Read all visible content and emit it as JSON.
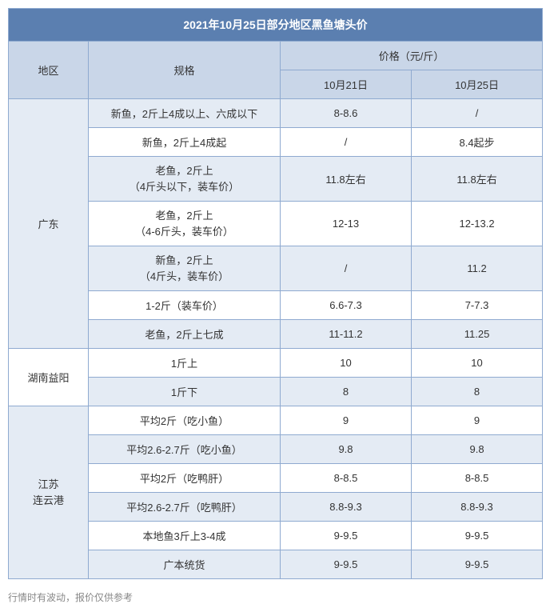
{
  "title": "2021年10月25日部分地区黑鱼塘头价",
  "columns": {
    "region": "地区",
    "spec": "规格",
    "price_group": "价格（元/斤）",
    "date1": "10月21日",
    "date2": "10月25日"
  },
  "regions": [
    {
      "name": "广东",
      "rows": [
        {
          "spec": "新鱼，2斤上4成以上、六成以下",
          "p1": "8-8.6",
          "p2": "/",
          "alt": true
        },
        {
          "spec": "新鱼，2斤上4成起",
          "p1": "/",
          "p2": "8.4起步",
          "alt": false
        },
        {
          "spec_l1": "老鱼，2斤上",
          "spec_l2": "（4斤头以下，装车价）",
          "p1": "11.8左右",
          "p2": "11.8左右",
          "alt": true
        },
        {
          "spec_l1": "老鱼，2斤上",
          "spec_l2": "（4-6斤头，装车价）",
          "p1": "12-13",
          "p2": "12-13.2",
          "alt": false
        },
        {
          "spec_l1": "新鱼，2斤上",
          "spec_l2": "（4斤头，装车价）",
          "p1": "/",
          "p2": "11.2",
          "alt": true
        },
        {
          "spec": "1-2斤（装车价）",
          "p1": "6.6-7.3",
          "p2": "7-7.3",
          "alt": false
        },
        {
          "spec": "老鱼，2斤上七成",
          "p1": "11-11.2",
          "p2": "11.25",
          "alt": true
        }
      ]
    },
    {
      "name": "湖南益阳",
      "rows": [
        {
          "spec": "1斤上",
          "p1": "10",
          "p2": "10",
          "alt": false
        },
        {
          "spec": "1斤下",
          "p1": "8",
          "p2": "8",
          "alt": true
        }
      ]
    },
    {
      "name_l1": "江苏",
      "name_l2": "连云港",
      "rows": [
        {
          "spec": "平均2斤（吃小鱼）",
          "p1": "9",
          "p2": "9",
          "alt": false
        },
        {
          "spec": "平均2.6-2.7斤（吃小鱼）",
          "p1": "9.8",
          "p2": "9.8",
          "alt": true
        },
        {
          "spec": "平均2斤（吃鸭肝）",
          "p1": "8-8.5",
          "p2": "8-8.5",
          "alt": false
        },
        {
          "spec": "平均2.6-2.7斤（吃鸭肝）",
          "p1": "8.8-9.3",
          "p2": "8.8-9.3",
          "alt": true
        },
        {
          "spec": "本地鱼3斤上3-4成",
          "p1": "9-9.5",
          "p2": "9-9.5",
          "alt": false
        },
        {
          "spec": "广本统货",
          "p1": "9-9.5",
          "p2": "9-9.5",
          "alt": true
        }
      ]
    }
  ],
  "footnote": "行情时有波动，报价仅供参考",
  "colors": {
    "title_bg": "#5b7fb0",
    "header_bg": "#c9d6e8",
    "alt_bg": "#e4ebf4",
    "border": "#8faad0",
    "text": "#333333",
    "title_text": "#ffffff",
    "footnote_text": "#888888"
  }
}
